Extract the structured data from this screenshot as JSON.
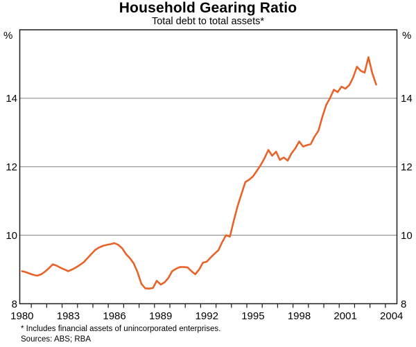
{
  "header": {
    "title": "Household Gearing Ratio",
    "subtitle": "Total debt to total assets*"
  },
  "axes": {
    "unit_left": "%",
    "unit_right": "%"
  },
  "footnotes": {
    "note": "* Includes financial assets of unincorporated enterprises.",
    "sources": "Sources: ABS; RBA"
  },
  "chart_data": {
    "type": "line",
    "title": "Household Gearing Ratio",
    "subtitle": "Total debt to total assets*",
    "ylabel": "%",
    "ylim": [
      8,
      16
    ],
    "yticks": [
      8,
      10,
      12,
      14
    ],
    "gridlines": [
      10,
      12,
      14
    ],
    "xlim": [
      1979.85,
      2004.35
    ],
    "xticks": [
      1980,
      1983,
      1986,
      1989,
      1992,
      1995,
      1998,
      2001,
      2004
    ],
    "minor_tick_years_start": 1980,
    "minor_tick_years_end": 2003,
    "legend_position": "none",
    "grid": "horizontal-only",
    "colors": {
      "line": "#E96228",
      "grid": "#808080",
      "frame": "#1A1A1A",
      "text": "#000000"
    },
    "series": [
      {
        "name": "Household gearing ratio (total debt to total assets)",
        "x": [
          1980,
          1980.25,
          1980.5,
          1980.75,
          1981,
          1981.25,
          1981.5,
          1981.75,
          1982,
          1982.25,
          1982.5,
          1982.75,
          1983,
          1983.25,
          1983.5,
          1983.75,
          1984,
          1984.25,
          1984.5,
          1984.75,
          1985,
          1985.25,
          1985.5,
          1985.75,
          1986,
          1986.25,
          1986.5,
          1986.75,
          1987,
          1987.25,
          1987.5,
          1987.75,
          1988,
          1988.25,
          1988.5,
          1988.75,
          1989,
          1989.25,
          1989.5,
          1989.75,
          1990,
          1990.25,
          1990.5,
          1990.75,
          1991,
          1991.25,
          1991.5,
          1991.75,
          1992,
          1992.25,
          1992.5,
          1992.75,
          1993,
          1993.25,
          1993.5,
          1993.75,
          1994,
          1994.25,
          1994.5,
          1994.75,
          1995,
          1995.25,
          1995.5,
          1995.75,
          1996,
          1996.25,
          1996.5,
          1996.75,
          1997,
          1997.25,
          1997.5,
          1997.75,
          1998,
          1998.25,
          1998.5,
          1998.75,
          1999,
          1999.25,
          1999.5,
          1999.75,
          2000,
          2000.25,
          2000.5,
          2000.75,
          2001,
          2001.25,
          2001.5,
          2001.75,
          2002,
          2002.25,
          2002.5,
          2002.75,
          2003
        ],
        "values": [
          8.95,
          8.92,
          8.88,
          8.84,
          8.82,
          8.86,
          8.94,
          9.04,
          9.15,
          9.11,
          9.05,
          9.0,
          8.95,
          9.0,
          9.06,
          9.13,
          9.21,
          9.33,
          9.45,
          9.57,
          9.64,
          9.69,
          9.72,
          9.74,
          9.77,
          9.72,
          9.62,
          9.45,
          9.33,
          9.18,
          8.92,
          8.58,
          8.45,
          8.44,
          8.46,
          8.67,
          8.56,
          8.62,
          8.75,
          8.95,
          9.02,
          9.07,
          9.07,
          9.06,
          8.95,
          8.86,
          9.0,
          9.2,
          9.23,
          9.35,
          9.46,
          9.56,
          9.8,
          10.0,
          9.96,
          10.42,
          10.85,
          11.2,
          11.55,
          11.62,
          11.72,
          11.88,
          12.05,
          12.25,
          12.49,
          12.32,
          12.44,
          12.2,
          12.27,
          12.18,
          12.39,
          12.54,
          12.74,
          12.59,
          12.63,
          12.66,
          12.88,
          13.05,
          13.45,
          13.8,
          14.0,
          14.25,
          14.18,
          14.34,
          14.28,
          14.38,
          14.6,
          14.92,
          14.8,
          14.75,
          15.2,
          14.73,
          14.4
        ]
      }
    ]
  }
}
